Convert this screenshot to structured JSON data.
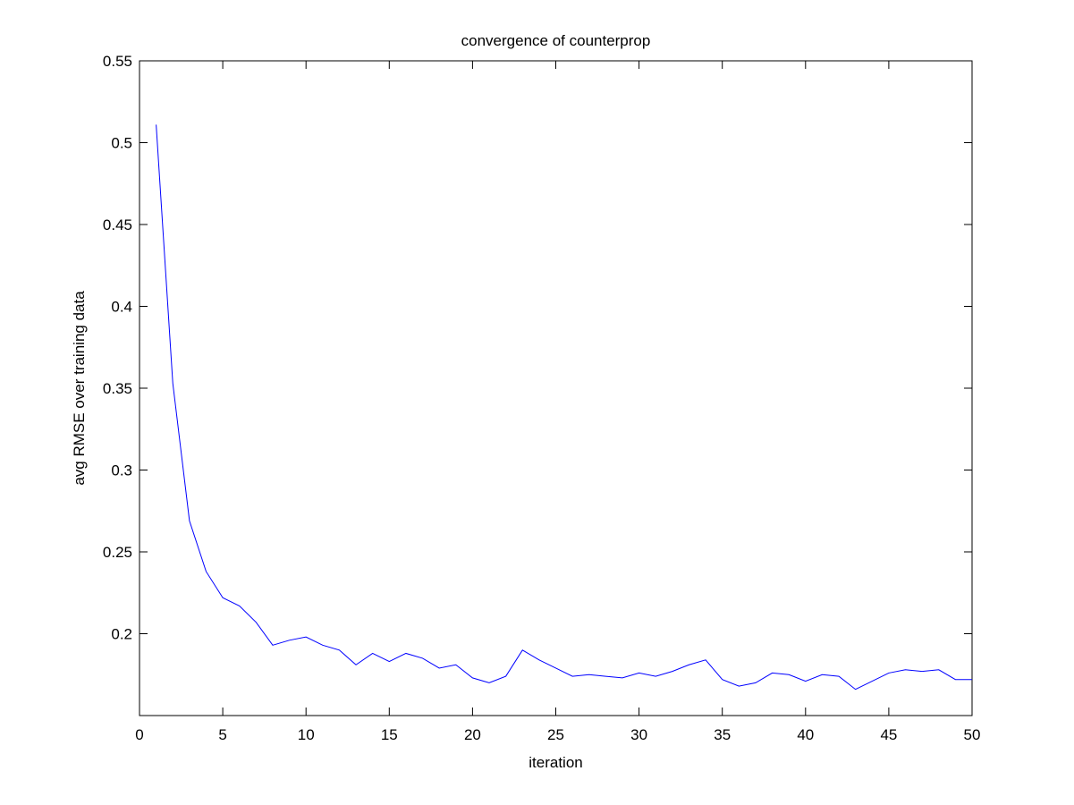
{
  "chart_data": {
    "type": "line",
    "title": "convergence of counterprop",
    "xlabel": "iteration",
    "ylabel": "avg RMSE over training data",
    "xlim": [
      0,
      50
    ],
    "ylim": [
      0.15,
      0.55
    ],
    "xticks": [
      "0",
      "5",
      "10",
      "15",
      "20",
      "25",
      "30",
      "35",
      "40",
      "45",
      "50"
    ],
    "yticks": [
      "0.2",
      "0.25",
      "0.3",
      "0.35",
      "0.4",
      "0.45",
      "0.5",
      "0.55"
    ],
    "grid": false,
    "series": [
      {
        "color": "#0000ff",
        "x": [
          1,
          2,
          3,
          4,
          5,
          6,
          7,
          8,
          9,
          10,
          11,
          12,
          13,
          14,
          15,
          16,
          17,
          18,
          19,
          20,
          21,
          22,
          23,
          24,
          25,
          26,
          27,
          28,
          29,
          30,
          31,
          32,
          33,
          34,
          35,
          36,
          37,
          38,
          39,
          40,
          41,
          42,
          43,
          44,
          45,
          46,
          47,
          48,
          49,
          50
        ],
        "y": [
          0.511,
          0.353,
          0.269,
          0.238,
          0.222,
          0.217,
          0.207,
          0.193,
          0.196,
          0.198,
          0.193,
          0.19,
          0.181,
          0.188,
          0.183,
          0.188,
          0.185,
          0.179,
          0.181,
          0.173,
          0.17,
          0.174,
          0.19,
          0.184,
          0.179,
          0.174,
          0.175,
          0.174,
          0.173,
          0.176,
          0.174,
          0.177,
          0.181,
          0.184,
          0.172,
          0.168,
          0.17,
          0.176,
          0.175,
          0.171,
          0.175,
          0.174,
          0.166,
          0.171,
          0.176,
          0.178,
          0.177,
          0.178,
          0.172,
          0.172
        ]
      }
    ]
  }
}
